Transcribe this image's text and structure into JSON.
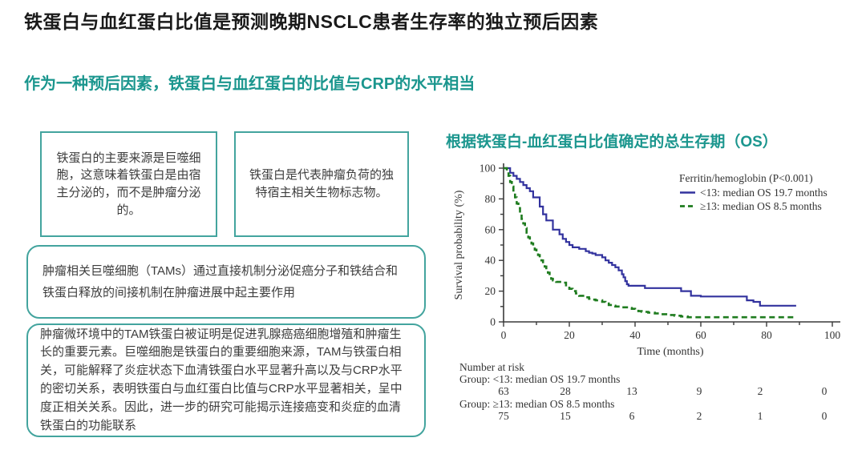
{
  "slide": {
    "title": "铁蛋白与血红蛋白比值是预测晚期NSCLC患者生存率的独立预后因素",
    "subtitle": "作为一种预后因素，铁蛋白与血红蛋白的比值与CRP的水平相当"
  },
  "boxes": {
    "box1": "铁蛋白的主要来源是巨噬细胞，这意味着铁蛋白是由宿主分泌的，而不是肿瘤分泌的。",
    "box2": "铁蛋白是代表肿瘤负荷的独特宿主相关生物标志物。",
    "box3": "肿瘤相关巨噬细胞（TAMs）通过直接机制分泌促癌分子和铁结合和铁蛋白释放的间接机制在肿瘤进展中起主要作用",
    "box4": "肿瘤微环境中的TAM铁蛋白被证明是促进乳腺癌癌细胞增殖和肿瘤生长的重要元素。巨噬细胞是铁蛋白的重要细胞来源，TAM与铁蛋白相关，可能解释了炎症状态下血清铁蛋白水平显著升高以及与CRP水平的密切关系，表明铁蛋白与血红蛋白比值与CRP水平显著相关，呈中度正相关关系。因此，进一步的研究可能揭示连接癌变和炎症的血清铁蛋白的功能联系"
  },
  "colors": {
    "teal": "#1b968e",
    "box_border": "#43a49e",
    "curve_lt13": "#32329e",
    "curve_ge13": "#1f7c1f",
    "risk_label_navy": "#3c3c94"
  },
  "chart_data": {
    "type": "line",
    "subtype": "kaplan-meier",
    "title": "根据铁蛋白-血红蛋白比值确定的总生存期（OS）",
    "xlabel": "Time (months)",
    "ylabel": "Survival probability (%)",
    "xlim": [
      0,
      100
    ],
    "ylim": [
      0,
      100
    ],
    "xticks": [
      0,
      20,
      40,
      60,
      80,
      100
    ],
    "yticks": [
      0,
      20,
      40,
      60,
      80,
      100
    ],
    "grid": false,
    "legend_position": "upper right",
    "legend_title": "Ferritin/hemoglobin (P<0.001)",
    "series": [
      {
        "name": "<13: median OS 19.7 months",
        "color": "#32329e",
        "style": "solid",
        "points": [
          [
            0,
            100
          ],
          [
            2,
            97
          ],
          [
            3,
            95
          ],
          [
            4,
            93
          ],
          [
            5,
            91
          ],
          [
            6,
            89
          ],
          [
            7,
            87
          ],
          [
            8,
            85
          ],
          [
            9,
            81
          ],
          [
            11,
            75
          ],
          [
            12,
            70
          ],
          [
            13,
            66
          ],
          [
            15,
            60
          ],
          [
            17,
            57
          ],
          [
            18,
            54
          ],
          [
            19,
            52
          ],
          [
            20,
            50
          ],
          [
            21,
            48.5
          ],
          [
            23,
            47.5
          ],
          [
            25,
            46
          ],
          [
            26,
            45
          ],
          [
            27,
            44.5
          ],
          [
            28,
            43.5
          ],
          [
            30,
            42
          ],
          [
            31,
            40
          ],
          [
            32,
            38.5
          ],
          [
            33,
            37
          ],
          [
            34,
            35.5
          ],
          [
            35,
            33.5
          ],
          [
            36,
            31
          ],
          [
            36.5,
            29
          ],
          [
            37,
            26.5
          ],
          [
            37.5,
            24.5
          ],
          [
            38,
            23.5
          ],
          [
            43,
            22
          ],
          [
            54,
            20
          ],
          [
            57,
            17
          ],
          [
            60,
            16.5
          ],
          [
            74,
            14
          ],
          [
            76,
            13
          ],
          [
            78,
            10.5
          ],
          [
            89,
            10.5
          ]
        ]
      },
      {
        "name": "≥13: median OS 8.5 months",
        "color": "#1f7c1f",
        "style": "dashed",
        "points": [
          [
            0,
            100
          ],
          [
            1,
            98
          ],
          [
            1.5,
            95
          ],
          [
            2,
            91
          ],
          [
            2.5,
            88
          ],
          [
            3,
            84
          ],
          [
            3.5,
            81
          ],
          [
            4,
            77
          ],
          [
            4.5,
            74
          ],
          [
            5,
            70
          ],
          [
            5.5,
            67
          ],
          [
            6,
            64
          ],
          [
            6.5,
            61
          ],
          [
            7,
            58
          ],
          [
            7.5,
            55
          ],
          [
            8,
            53
          ],
          [
            8.5,
            51
          ],
          [
            9,
            49
          ],
          [
            9.5,
            47
          ],
          [
            10,
            45
          ],
          [
            10.5,
            43.5
          ],
          [
            11,
            42
          ],
          [
            11.5,
            40
          ],
          [
            12,
            38
          ],
          [
            12.5,
            36
          ],
          [
            13,
            34
          ],
          [
            13.5,
            32
          ],
          [
            14,
            30
          ],
          [
            14.5,
            28
          ],
          [
            15,
            27
          ],
          [
            16,
            26
          ],
          [
            18,
            25.5
          ],
          [
            19,
            23
          ],
          [
            20,
            21.5
          ],
          [
            21,
            20
          ],
          [
            22,
            18.5
          ],
          [
            23,
            17
          ],
          [
            25,
            16
          ],
          [
            26,
            15
          ],
          [
            27,
            14.5
          ],
          [
            28,
            14
          ],
          [
            30,
            13
          ],
          [
            31,
            12
          ],
          [
            32,
            11
          ],
          [
            33,
            10.5
          ],
          [
            34,
            10
          ],
          [
            36,
            9.5
          ],
          [
            38,
            9
          ],
          [
            39,
            8.5
          ],
          [
            40,
            8
          ],
          [
            41,
            7
          ],
          [
            42,
            6.5
          ],
          [
            44,
            6
          ],
          [
            46,
            5.5
          ],
          [
            48,
            5
          ],
          [
            50,
            4.5
          ],
          [
            52,
            4
          ],
          [
            54,
            3.5
          ],
          [
            56,
            3
          ],
          [
            89,
            3
          ]
        ]
      }
    ],
    "number_at_risk": {
      "label": "Number at risk",
      "groups": [
        {
          "label": "Group: <13: median OS 19.7 months",
          "values": [
            63,
            28,
            13,
            9,
            2,
            0
          ]
        },
        {
          "label": "Group: ≥13: median OS 8.5 months",
          "values": [
            75,
            15,
            6,
            2,
            1,
            0
          ]
        }
      ]
    }
  }
}
